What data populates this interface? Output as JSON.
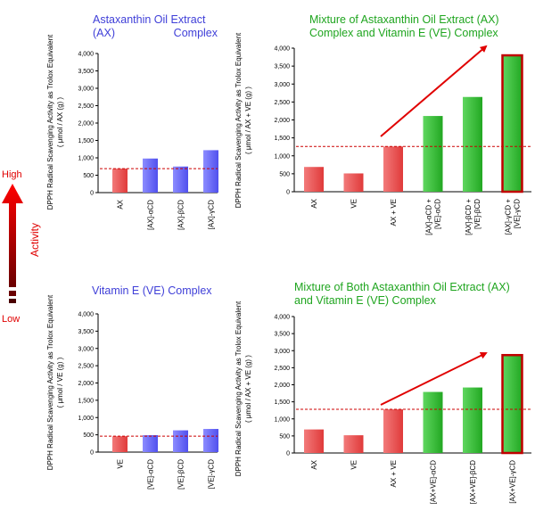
{
  "activity": {
    "high_label": "High",
    "low_label": "Low",
    "axis_label": "Activity"
  },
  "chart_data": [
    {
      "type": "bar",
      "title_line1": "Astaxanthin Oil Extract",
      "title_line2a": "(AX)",
      "title_line2b": "Complex",
      "ylabel_line1": "DPPH Radical Scavenging Activity as Trolox Equivalent",
      "ylabel_line2": "( μmol / AX (g) )",
      "ylim": [
        0,
        4000
      ],
      "yticks": [
        "0",
        "500",
        "1,000",
        "1,500",
        "2,000",
        "2,500",
        "3,000",
        "3,500",
        "4,000"
      ],
      "categories": [
        "AX",
        "[AX]-αCD",
        "[AX]-βCD",
        "[AX]-γCD"
      ],
      "values": [
        690,
        980,
        750,
        1220
      ],
      "bar_colors": [
        "red",
        "blue",
        "blue",
        "blue"
      ],
      "reference_line": 690,
      "highlight_index": -1
    },
    {
      "type": "bar",
      "title_line1": "Mixture of Astaxanthin Oil Extract (AX)",
      "title_line2": "Complex and Vitamin E (VE) Complex",
      "ylabel_line1": "DPPH Radical Scavenging Activity as Trolox Equivalent",
      "ylabel_line2": "( μmol / AX + VE (g) )",
      "ylim": [
        0,
        4000
      ],
      "yticks": [
        "0",
        "500",
        "1,000",
        "1,500",
        "2,000",
        "2,500",
        "3,000",
        "3,500",
        "4,000"
      ],
      "categories": [
        "AX",
        "VE",
        "AX + VE",
        "[AX]-αCD + [VE]-αCD",
        "[AX]-βCD + [VE]-βCD",
        "[AX]-γCD + [VE]-γCD"
      ],
      "values": [
        690,
        510,
        1260,
        2110,
        2640,
        3800
      ],
      "bar_colors": [
        "red",
        "red",
        "red",
        "green",
        "green",
        "green"
      ],
      "reference_line": 1260,
      "highlight_index": 5
    },
    {
      "type": "bar",
      "title_line1": "Vitamin E (VE) Complex",
      "ylabel_line1": "DPPH Radical Scavenging Activity as Trolox Equivalent",
      "ylabel_line2": "( μmol / VE (g) )",
      "ylim": [
        0,
        4000
      ],
      "yticks": [
        "0",
        "500",
        "1,000",
        "1,500",
        "2,000",
        "2,500",
        "3,000",
        "3,500",
        "4,000"
      ],
      "categories": [
        "VE",
        "[VE]-αCD",
        "[VE]-βCD",
        "[VE]-γCD"
      ],
      "values": [
        460,
        490,
        630,
        670
      ],
      "bar_colors": [
        "red",
        "blue",
        "blue",
        "blue"
      ],
      "reference_line": 460,
      "highlight_index": -1
    },
    {
      "type": "bar",
      "title_line1": "Mixture of Both Astaxanthin Oil Extract (AX)",
      "title_line2": "and Vitamin E (VE) Complex",
      "ylabel_line1": "DPPH Radical Scavenging Activity as Trolox Equivalent",
      "ylabel_line2": "( μmol / AX + VE (g) )",
      "ylim": [
        0,
        4000
      ],
      "yticks": [
        "0",
        "500",
        "1,000",
        "1,500",
        "2,000",
        "2,500",
        "3,000",
        "3,500",
        "4,000"
      ],
      "categories": [
        "AX",
        "VE",
        "AX + VE",
        "[AX+VE]-αCD",
        "[AX+VE]-βCD",
        "[AX+VE]-γCD"
      ],
      "values": [
        690,
        520,
        1280,
        1790,
        1920,
        2870
      ],
      "bar_colors": [
        "red",
        "red",
        "red",
        "green",
        "green",
        "green"
      ],
      "reference_line": 1280,
      "highlight_index": 5
    }
  ]
}
